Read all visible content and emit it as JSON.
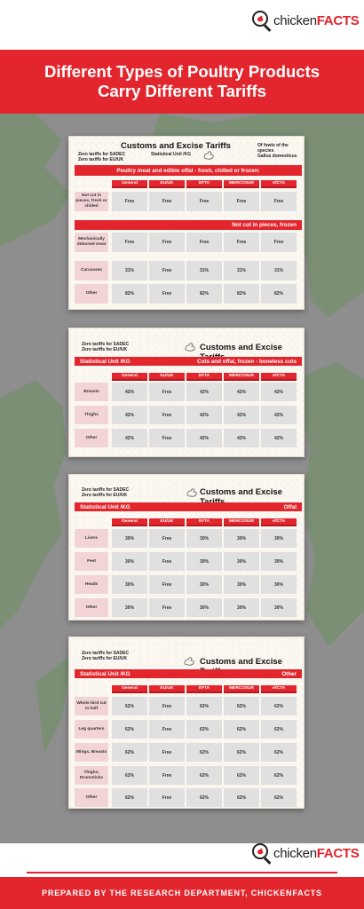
{
  "brand": {
    "name_plain": "chicken",
    "name_bold": "FACTS"
  },
  "banner": {
    "line1": "Different Types of Poultry Products",
    "line2": "Carry Different Tariffs"
  },
  "footer": {
    "text": "PREPARED BY THE RESEARCH DEPARTMENT, CHICKENFACTS"
  },
  "columns": [
    "General",
    "EU/UK",
    "EFTA",
    "MERCOSUR",
    "AfCTA"
  ],
  "cards": [
    {
      "title": "Customs and Excise Tariffs",
      "note_lines": [
        "Zero tariffs for SADEC",
        "Zero tariffs for EU/UK"
      ],
      "unit": "Statistical Unit /KG",
      "species_lines": [
        "Of fowls of the species",
        "Gallus domesticus"
      ],
      "heading": "Poultry meat and edible offal - fresh, chilled or frozen:",
      "subheading": "Not cut in pieces, frozen",
      "rows": [
        {
          "label": "Not cut in pieces, fresh or chilled",
          "values": [
            "Free",
            "Free",
            "Free",
            "Free",
            "Free"
          ]
        },
        {
          "label": "Mechanically deboned meat",
          "values": [
            "Free",
            "Free",
            "Free",
            "Free",
            "Free"
          ]
        },
        {
          "label": "Carcasses",
          "values": [
            "31%",
            "Free",
            "31%",
            "31%",
            "31%"
          ]
        },
        {
          "label": "Other",
          "values": [
            "82%",
            "Free",
            "82%",
            "82%",
            "82%"
          ]
        }
      ]
    },
    {
      "title": "Customs and Excise Tariffs",
      "note_lines": [
        "Zero tariffs for SADEC",
        "Zero tariffs for EU/UK"
      ],
      "unit": "Statistical Unit /KG",
      "heading": "Cuts and offal, frozen - boneless cuts",
      "rows": [
        {
          "label": "Breasts",
          "values": [
            "42%",
            "Free",
            "42%",
            "42%",
            "42%"
          ]
        },
        {
          "label": "Thighs",
          "values": [
            "42%",
            "Free",
            "42%",
            "42%",
            "42%"
          ]
        },
        {
          "label": "Other",
          "values": [
            "42%",
            "Free",
            "42%",
            "42%",
            "42%"
          ]
        }
      ]
    },
    {
      "title": "Customs and Excise Tariffs",
      "note_lines": [
        "Zero tariffs for SADEC",
        "Zero tariffs for EU/UK"
      ],
      "unit": "Statistical Unit /KG",
      "heading": "Offal",
      "rows": [
        {
          "label": "Livers",
          "values": [
            "30%",
            "Free",
            "30%",
            "30%",
            "30%"
          ]
        },
        {
          "label": "Feet",
          "values": [
            "30%",
            "Free",
            "30%",
            "30%",
            "30%"
          ]
        },
        {
          "label": "Heads",
          "values": [
            "30%",
            "Free",
            "30%",
            "30%",
            "30%"
          ]
        },
        {
          "label": "Other",
          "values": [
            "30%",
            "Free",
            "30%",
            "30%",
            "30%"
          ]
        }
      ]
    },
    {
      "title": "Customs and Excise Tariffs",
      "note_lines": [
        "Zero tariffs for SADEC",
        "Zero tariffs for EU/UK"
      ],
      "unit": "Statistical Unit /KG",
      "heading": "Other",
      "rows": [
        {
          "label": "Whole bird cut in half",
          "values": [
            "62%",
            "Free",
            "62%",
            "62%",
            "62%"
          ]
        },
        {
          "label": "Leg quarters",
          "values": [
            "62%",
            "Free",
            "62%",
            "62%",
            "62%"
          ]
        },
        {
          "label": "Wings, Breasts",
          "values": [
            "62%",
            "Free",
            "62%",
            "62%",
            "62%"
          ]
        },
        {
          "label": "Thighs, Drumsticks",
          "values": [
            "62%",
            "Free",
            "62%",
            "62%",
            "62%"
          ]
        },
        {
          "label": "Other",
          "values": [
            "62%",
            "Free",
            "62%",
            "62%",
            "62%"
          ]
        }
      ]
    }
  ]
}
